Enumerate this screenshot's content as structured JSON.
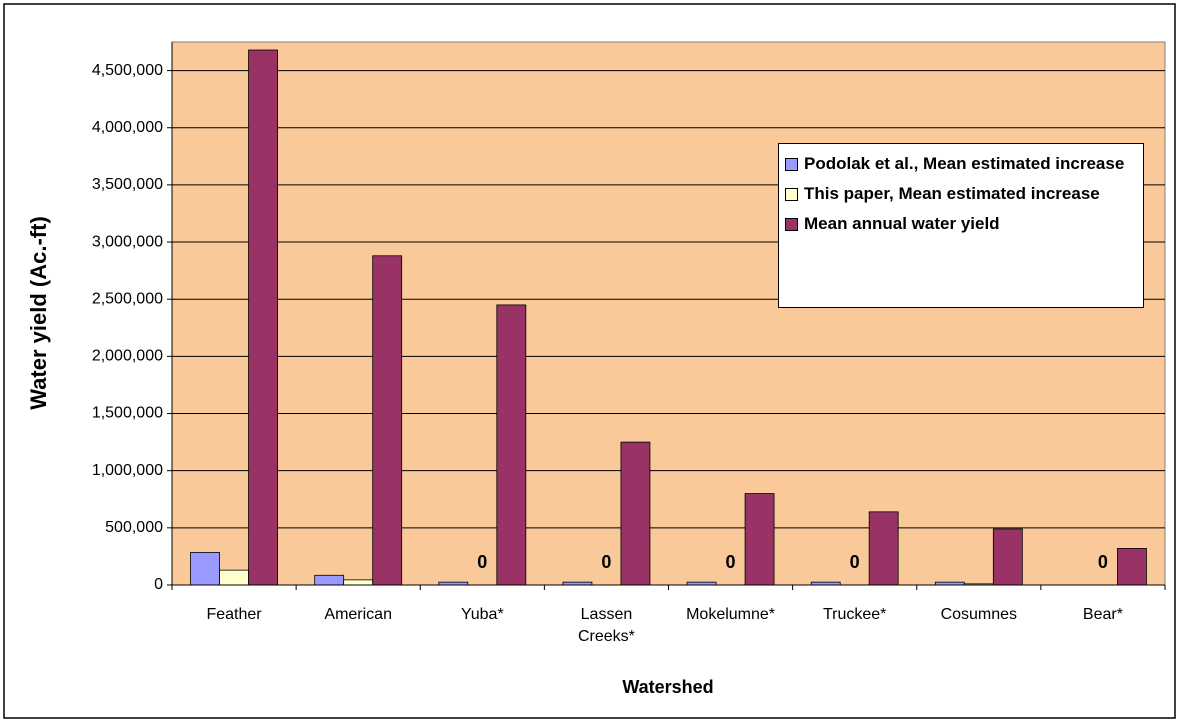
{
  "chart_data": {
    "type": "bar",
    "y_label": "Water yield (Ac.-ft)",
    "x_label": "Watershed",
    "categories": [
      "Feather",
      "American",
      "Yuba*",
      "Lassen Creeks*",
      "Mokelumne*",
      "Truckee*",
      "Cosumnes",
      "Bear*"
    ],
    "series": [
      {
        "name": "Podolak et al., Mean estimated increase",
        "color": "#9999ff",
        "values": [
          285000,
          85000,
          25000,
          25000,
          25000,
          25000,
          25000,
          0
        ]
      },
      {
        "name": "This paper, Mean estimated increase",
        "color": "#ffffcc",
        "values": [
          130000,
          45000,
          0,
          0,
          0,
          0,
          10000,
          0
        ],
        "value_labels": [
          null,
          null,
          "0",
          "0",
          "0",
          "0",
          null,
          "0"
        ]
      },
      {
        "name": "Mean annual water yield",
        "color": "#993366",
        "values": [
          4680000,
          2880000,
          2450000,
          1250000,
          800000,
          640000,
          490000,
          320000
        ]
      }
    ],
    "ylim": [
      0,
      4750000
    ],
    "yticks": [
      0,
      {
        "value": 500000,
        "label": "500,000"
      },
      {
        "value": 1000000,
        "label": "1,000,000"
      },
      {
        "value": 1500000,
        "label": "1,500,000"
      },
      {
        "value": 2000000,
        "label": "2,000,000"
      },
      {
        "value": 2500000,
        "label": "2,500,000"
      },
      {
        "value": 3000000,
        "label": "3,000,000"
      },
      {
        "value": 3500000,
        "label": "3,500,000"
      },
      {
        "value": 4000000,
        "label": "4,000,000"
      },
      {
        "value": 4500000,
        "label": "4,500,000"
      }
    ],
    "grid": true,
    "plot_background": "#f9c99a",
    "legend": "upper right"
  }
}
